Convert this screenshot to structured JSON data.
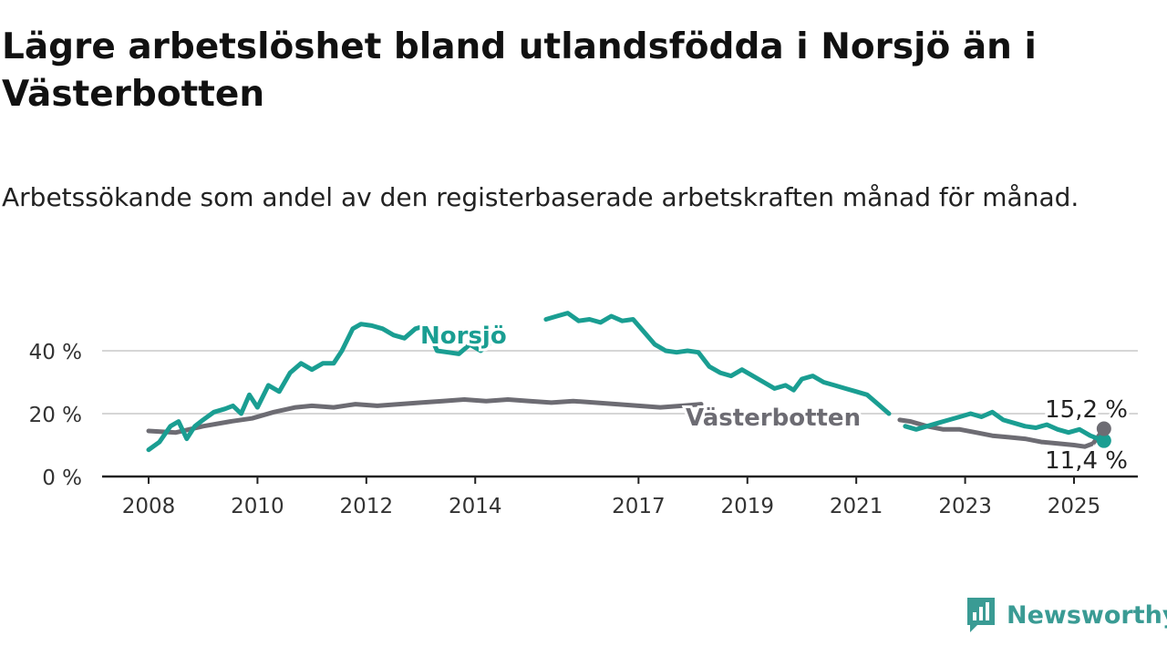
{
  "title": "Lägre arbetslöshet bland utlandsfödda i Norsjö än i Västerbotten",
  "subtitle": "Arbetssökande som andel av den registerbaserade arbetskraften månad för månad.",
  "brand": {
    "name": "Newsworthy",
    "icon": "newsworthy-logo-icon",
    "color": "#3a9b94"
  },
  "chart_data": {
    "type": "line",
    "title": "Lägre arbetslöshet bland utlandsfödda i Norsjö än i Västerbotten",
    "subtitle": "Arbetssökande som andel av den registerbaserade arbetskraften månad för månad.",
    "xlabel": "",
    "ylabel": "",
    "xlim": [
      2008.0,
      2025.55
    ],
    "ylim": [
      0,
      55
    ],
    "x_ticks": [
      2008,
      2010,
      2012,
      2014,
      2017,
      2019,
      2021,
      2023,
      2025
    ],
    "x_tick_labels": [
      "2008",
      "2010",
      "2012",
      "2014",
      "2017",
      "2019",
      "2021",
      "2023",
      "2025"
    ],
    "y_ticks": [
      0,
      20,
      40
    ],
    "y_tick_labels": [
      "0 %",
      "20 %",
      "40 %"
    ],
    "grid": "horizontal",
    "legend": "inline labels",
    "series": [
      {
        "name": "Norsjö",
        "color": "#1a9e92",
        "label_at": [
          2014.25,
          42.5
        ],
        "end_label": "11,4 %",
        "points": [
          [
            2008.0,
            8.5
          ],
          [
            2008.2,
            11
          ],
          [
            2008.4,
            16
          ],
          [
            2008.55,
            17.5
          ],
          [
            2008.7,
            12
          ],
          [
            2008.85,
            16
          ],
          [
            2009.0,
            18
          ],
          [
            2009.2,
            20.5
          ],
          [
            2009.4,
            21.5
          ],
          [
            2009.55,
            22.5
          ],
          [
            2009.7,
            20
          ],
          [
            2009.85,
            26
          ],
          [
            2010.0,
            22
          ],
          [
            2010.2,
            29
          ],
          [
            2010.4,
            27
          ],
          [
            2010.6,
            33
          ],
          [
            2010.8,
            36
          ],
          [
            2011.0,
            34
          ],
          [
            2011.2,
            36
          ],
          [
            2011.4,
            36
          ],
          [
            2011.55,
            40
          ],
          [
            2011.75,
            47
          ],
          [
            2011.9,
            48.5
          ],
          [
            2012.1,
            48
          ],
          [
            2012.3,
            47
          ],
          [
            2012.5,
            45
          ],
          [
            2012.7,
            44
          ],
          [
            2012.9,
            47
          ],
          [
            2013.1,
            48
          ],
          [
            2013.3,
            40
          ],
          [
            2013.5,
            39.5
          ],
          [
            2013.7,
            39
          ],
          [
            2013.9,
            42
          ],
          [
            2014.1,
            40
          ],
          [
            2014.25,
            42
          ]
        ],
        "points2": [
          [
            2015.3,
            50
          ],
          [
            2015.5,
            51
          ],
          [
            2015.7,
            52
          ],
          [
            2015.9,
            49.5
          ],
          [
            2016.1,
            50
          ],
          [
            2016.3,
            49
          ],
          [
            2016.5,
            51
          ],
          [
            2016.7,
            49.5
          ],
          [
            2016.9,
            50
          ],
          [
            2017.1,
            46
          ],
          [
            2017.3,
            42
          ],
          [
            2017.5,
            40
          ],
          [
            2017.7,
            39.5
          ],
          [
            2017.9,
            40
          ],
          [
            2018.1,
            39.5
          ],
          [
            2018.3,
            35
          ],
          [
            2018.5,
            33
          ],
          [
            2018.7,
            32
          ],
          [
            2018.9,
            34
          ],
          [
            2019.1,
            32
          ],
          [
            2019.3,
            30
          ],
          [
            2019.5,
            28
          ],
          [
            2019.7,
            29
          ],
          [
            2019.85,
            27.5
          ],
          [
            2020.0,
            31
          ],
          [
            2020.2,
            32
          ],
          [
            2020.4,
            30
          ],
          [
            2020.6,
            29
          ],
          [
            2020.8,
            28
          ],
          [
            2021.0,
            27
          ],
          [
            2021.2,
            26
          ],
          [
            2021.4,
            23
          ],
          [
            2021.6,
            20
          ]
        ],
        "points3": [
          [
            2021.9,
            16
          ],
          [
            2022.1,
            15
          ],
          [
            2022.3,
            16
          ],
          [
            2022.5,
            17
          ],
          [
            2022.7,
            18
          ],
          [
            2022.9,
            19
          ],
          [
            2023.1,
            20
          ],
          [
            2023.3,
            19
          ],
          [
            2023.5,
            20.5
          ],
          [
            2023.7,
            18
          ],
          [
            2023.9,
            17
          ],
          [
            2024.1,
            16
          ],
          [
            2024.3,
            15.5
          ],
          [
            2024.5,
            16.5
          ],
          [
            2024.7,
            15
          ],
          [
            2024.9,
            14
          ],
          [
            2025.1,
            15
          ],
          [
            2025.3,
            13
          ],
          [
            2025.45,
            12
          ],
          [
            2025.55,
            11.4
          ]
        ]
      },
      {
        "name": "Västerbotten",
        "color": "#6d6c73",
        "label_at": [
          2018.15,
          19.5
        ],
        "end_label": "15,2 %",
        "points": [
          [
            2008.0,
            14.5
          ],
          [
            2008.5,
            14
          ],
          [
            2009.0,
            16
          ],
          [
            2009.5,
            17.5
          ],
          [
            2009.9,
            18.5
          ],
          [
            2010.3,
            20.5
          ],
          [
            2010.7,
            22
          ],
          [
            2011.0,
            22.5
          ],
          [
            2011.4,
            22
          ],
          [
            2011.8,
            23
          ],
          [
            2012.2,
            22.5
          ],
          [
            2012.6,
            23
          ],
          [
            2013.0,
            23.5
          ],
          [
            2013.4,
            24
          ],
          [
            2013.8,
            24.5
          ],
          [
            2014.2,
            24
          ],
          [
            2014.6,
            24.5
          ],
          [
            2015.0,
            24
          ],
          [
            2015.4,
            23.5
          ],
          [
            2015.8,
            24
          ],
          [
            2016.2,
            23.5
          ],
          [
            2016.6,
            23
          ],
          [
            2017.0,
            22.5
          ],
          [
            2017.4,
            22
          ],
          [
            2017.8,
            22.5
          ],
          [
            2018.15,
            23
          ]
        ],
        "points2": [
          [
            2021.8,
            18
          ],
          [
            2022.0,
            17.5
          ],
          [
            2022.3,
            16
          ],
          [
            2022.6,
            15
          ],
          [
            2022.9,
            15
          ],
          [
            2023.2,
            14
          ],
          [
            2023.5,
            13
          ],
          [
            2023.8,
            12.5
          ],
          [
            2024.1,
            12
          ],
          [
            2024.4,
            11
          ],
          [
            2024.7,
            10.5
          ],
          [
            2025.0,
            10
          ],
          [
            2025.2,
            9.5
          ],
          [
            2025.35,
            10.5
          ],
          [
            2025.55,
            15.2
          ]
        ]
      }
    ]
  }
}
